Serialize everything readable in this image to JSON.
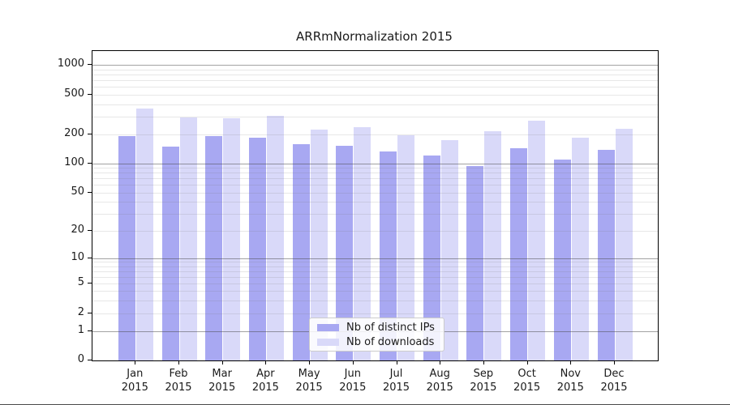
{
  "chart_data": {
    "type": "bar",
    "title": "ARRmNormalization 2015",
    "categories": [
      "Jan",
      "Feb",
      "Mar",
      "Apr",
      "May",
      "Jun",
      "Jul",
      "Aug",
      "Sep",
      "Oct",
      "Nov",
      "Dec"
    ],
    "year_label": "2015",
    "series": [
      {
        "name": "Nb of distinct IPs",
        "color": "#a8a8f2",
        "values": [
          193,
          148,
          192,
          185,
          158,
          152,
          133,
          121,
          94,
          145,
          110,
          138
        ]
      },
      {
        "name": "Nb of downloads",
        "color": "#d9d9f9",
        "values": [
          360,
          292,
          288,
          307,
          224,
          236,
          196,
          175,
          215,
          272,
          184,
          225
        ]
      }
    ],
    "xlabel": "",
    "ylabel": "",
    "y_ticks": [
      0,
      1,
      2,
      5,
      10,
      20,
      50,
      100,
      200,
      500,
      1000
    ],
    "y_minor_gridlines": [
      3,
      4,
      6,
      7,
      8,
      9,
      30,
      40,
      60,
      70,
      80,
      90,
      300,
      400,
      600,
      700,
      800,
      900
    ],
    "y_decade_gridlines": [
      1,
      10,
      100,
      1000
    ],
    "y_scale": "log-like",
    "ylim": [
      0,
      1400
    ],
    "grid": "on",
    "legend_position": "lower center",
    "frame_color": "#000000",
    "grid_minor_color": "#e9e9e9",
    "grid_decade_color": "#a0a0a0"
  }
}
